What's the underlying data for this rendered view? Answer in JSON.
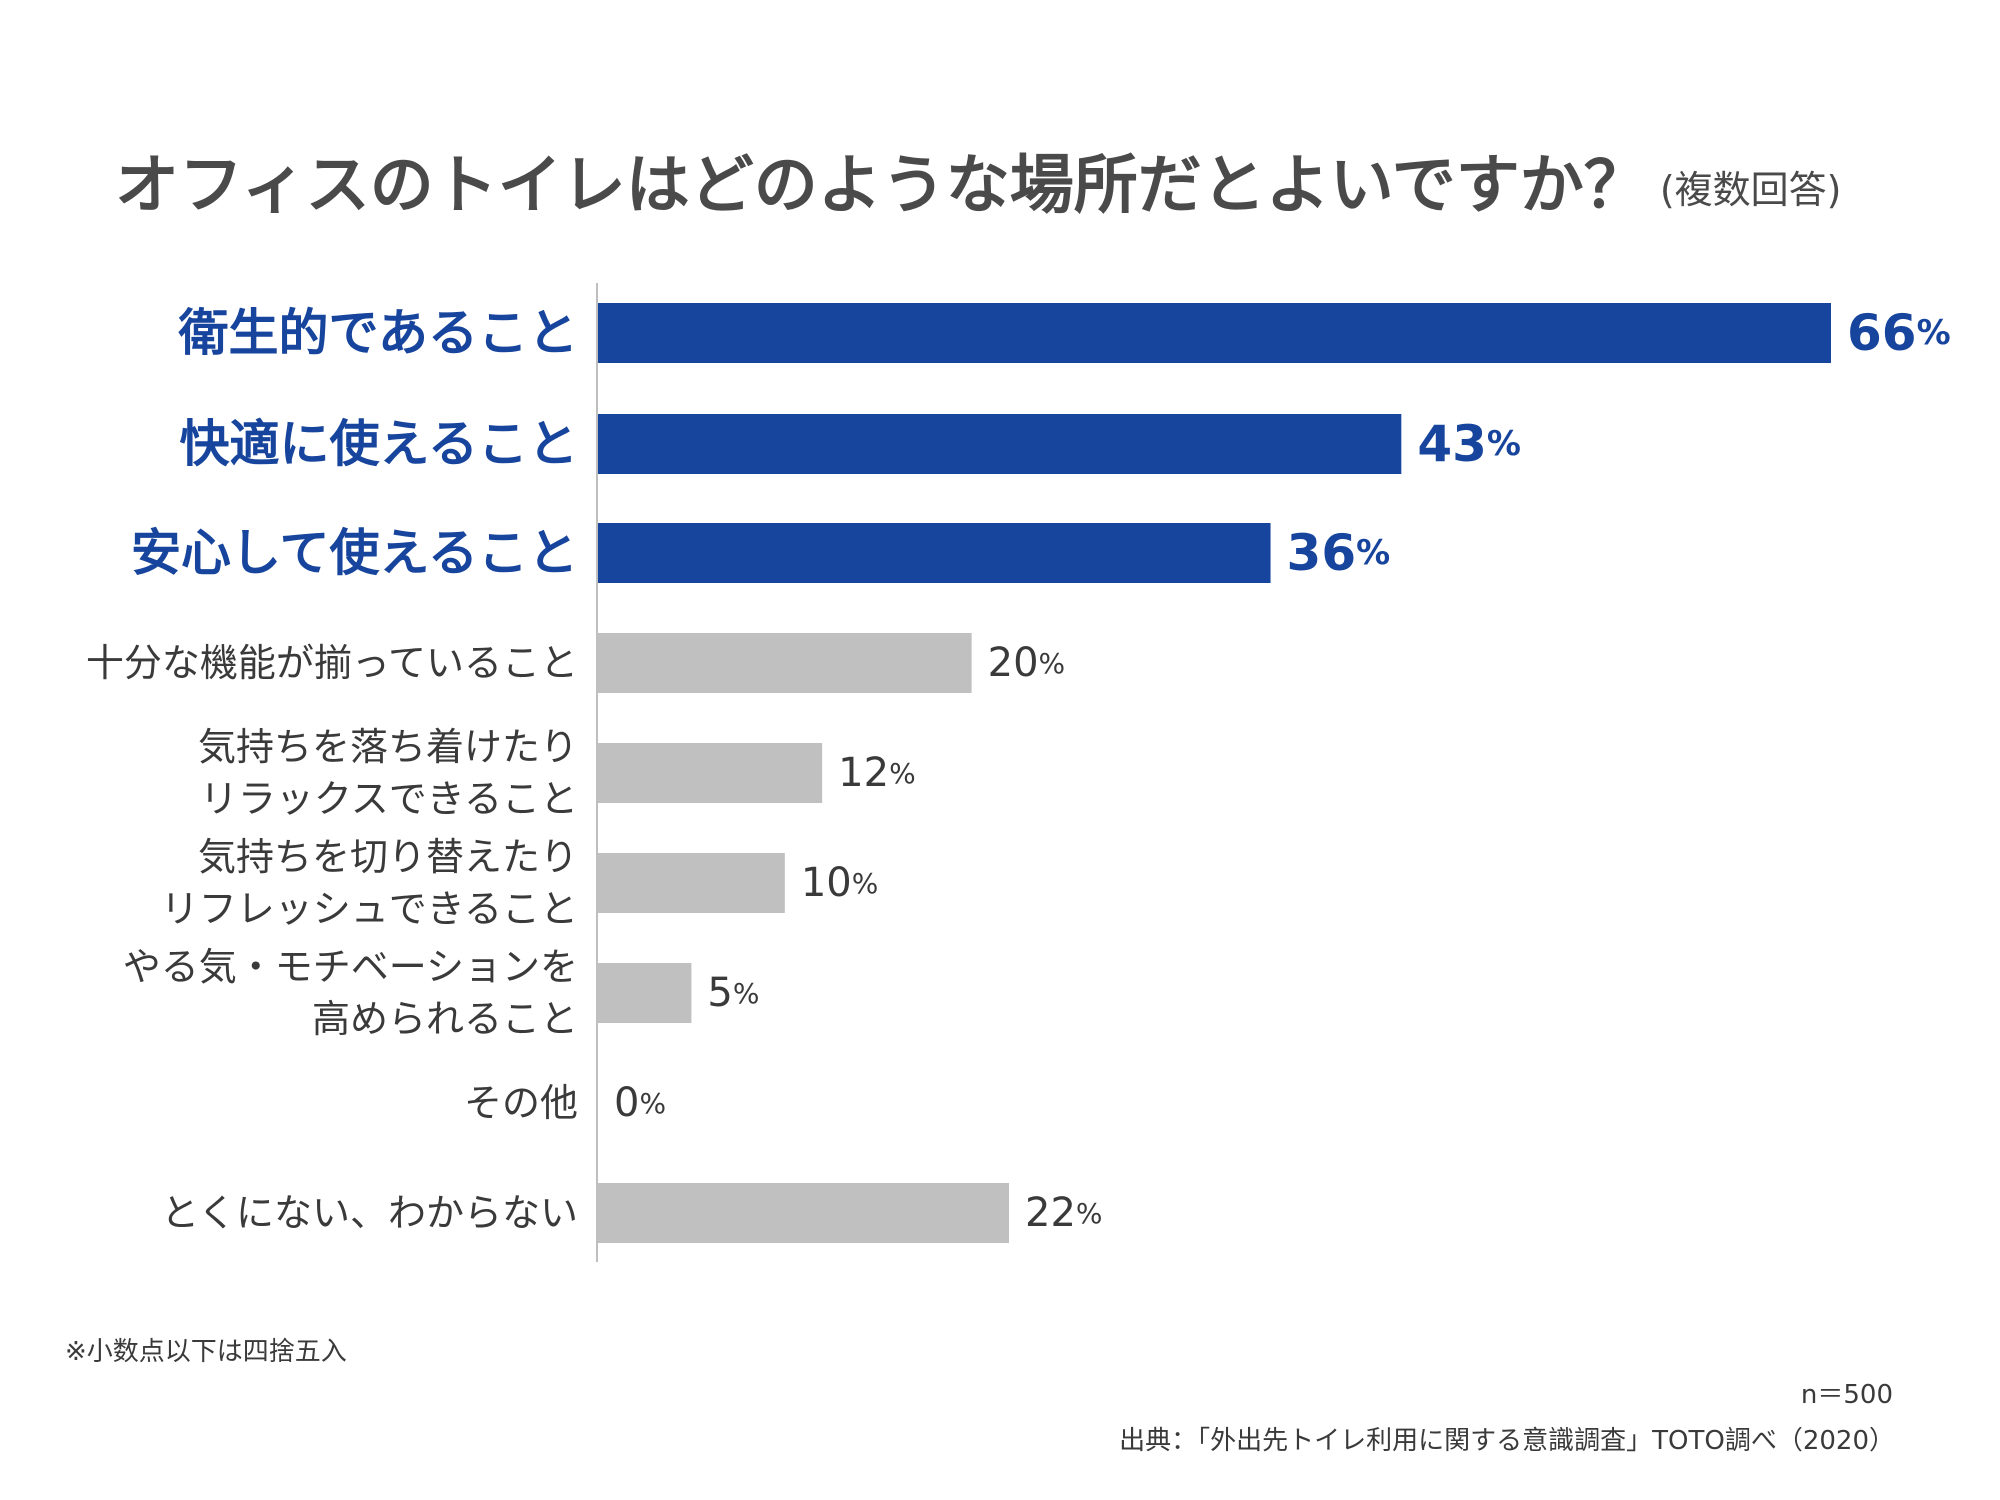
{
  "chart_data": {
    "type": "bar",
    "orientation": "horizontal",
    "title": "オフィスのトイレはどのような場所だとよいですか？",
    "subtitle": "(複数回答)",
    "categories": [
      "衛生的であること",
      "快適に使えること",
      "安心して使えること",
      "十分な機能が揃っていること",
      "気持ちを落ち着けたり\nリラックスできること",
      "気持ちを切り替えたり\nリフレッシュできること",
      "やる気・モチベーションを\n高められること",
      "その他",
      "とくにない、わからない"
    ],
    "values": [
      66,
      43,
      36,
      20,
      12,
      10,
      5,
      0,
      22
    ],
    "unit": "%",
    "highlighted": [
      true,
      true,
      true,
      false,
      false,
      false,
      false,
      false,
      false
    ],
    "colors": {
      "highlight": "#17449c",
      "normal": "#c0c0c0",
      "axis": "#bfbfbf"
    },
    "xlim": [
      0,
      66
    ],
    "grid": false,
    "legend": "none"
  },
  "notes": {
    "rounding": "※小数点以下は四捨五入",
    "sample": "n＝500",
    "source": "出典：「外出先トイレ利用に関する意識調査」TOTO調べ（2020）"
  }
}
